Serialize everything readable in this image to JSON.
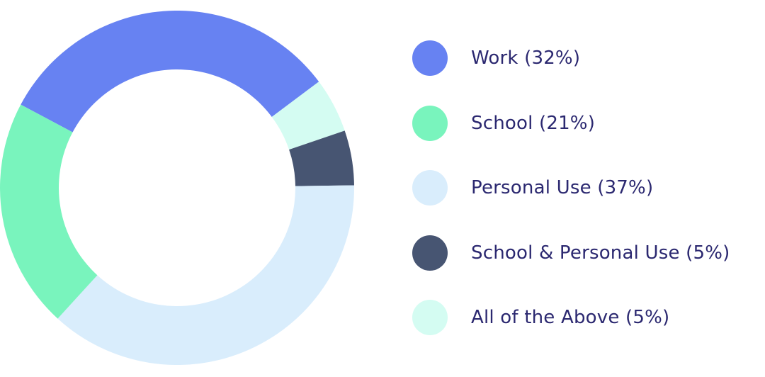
{
  "chart_data": {
    "type": "pie",
    "categories": [
      "Work",
      "School",
      "Personal Use",
      "School & Personal Use",
      "All of the Above"
    ],
    "values": [
      32,
      21,
      37,
      5,
      5
    ],
    "unit": "%",
    "colors": [
      "#6782f2",
      "#79f4bd",
      "#d9edfc",
      "#475572",
      "#d4fcf2"
    ],
    "legend_labels": [
      "Work (32%)",
      "School (21%)",
      "Personal Use (37%)",
      "School & Personal Use (5%)",
      "All of the Above (5%)"
    ],
    "slice_order": [
      0,
      4,
      3,
      2,
      1
    ],
    "donut": true,
    "legend": "right"
  }
}
